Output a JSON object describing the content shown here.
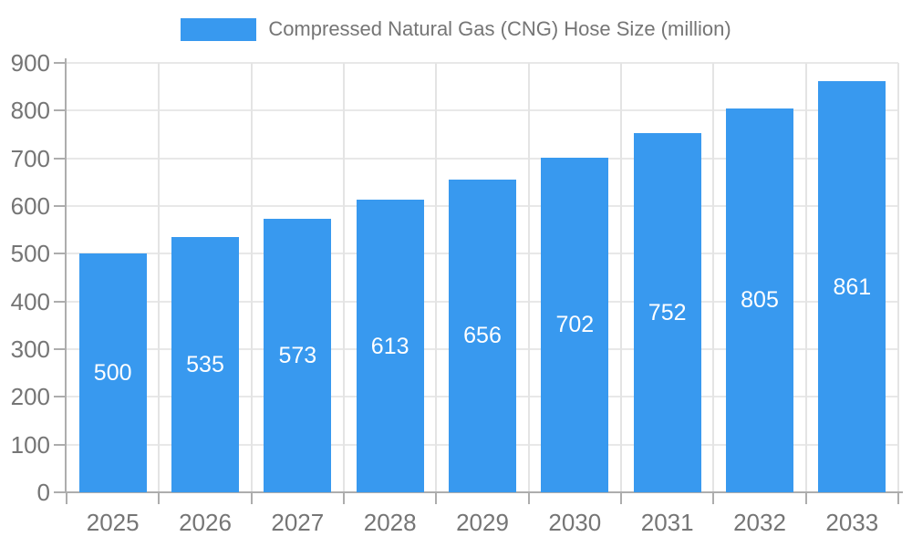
{
  "legend": {
    "label": "Compressed Natural Gas (CNG) Hose Size (million)"
  },
  "colors": {
    "bar": "#3899ef",
    "axis_line": "#adadad",
    "gridline_horizontal": "#e8e8e8",
    "gridline_vertical": "#e4e4e4",
    "tick_label": "#757575",
    "bar_label": "#ffffff",
    "background": "#ffffff"
  },
  "chart_data": {
    "type": "bar",
    "title": "Compressed Natural Gas (CNG) Hose Size (million)",
    "categories": [
      "2025",
      "2026",
      "2027",
      "2028",
      "2029",
      "2030",
      "2031",
      "2032",
      "2033"
    ],
    "values": [
      500,
      535,
      573,
      613,
      656,
      702,
      752,
      805,
      861
    ],
    "xlabel": "",
    "ylabel": "",
    "ylim": [
      0,
      900
    ],
    "yticks": [
      0,
      100,
      200,
      300,
      400,
      500,
      600,
      700,
      800,
      900
    ],
    "grid": true,
    "legend_position": "top",
    "bar_value_labels": true
  }
}
